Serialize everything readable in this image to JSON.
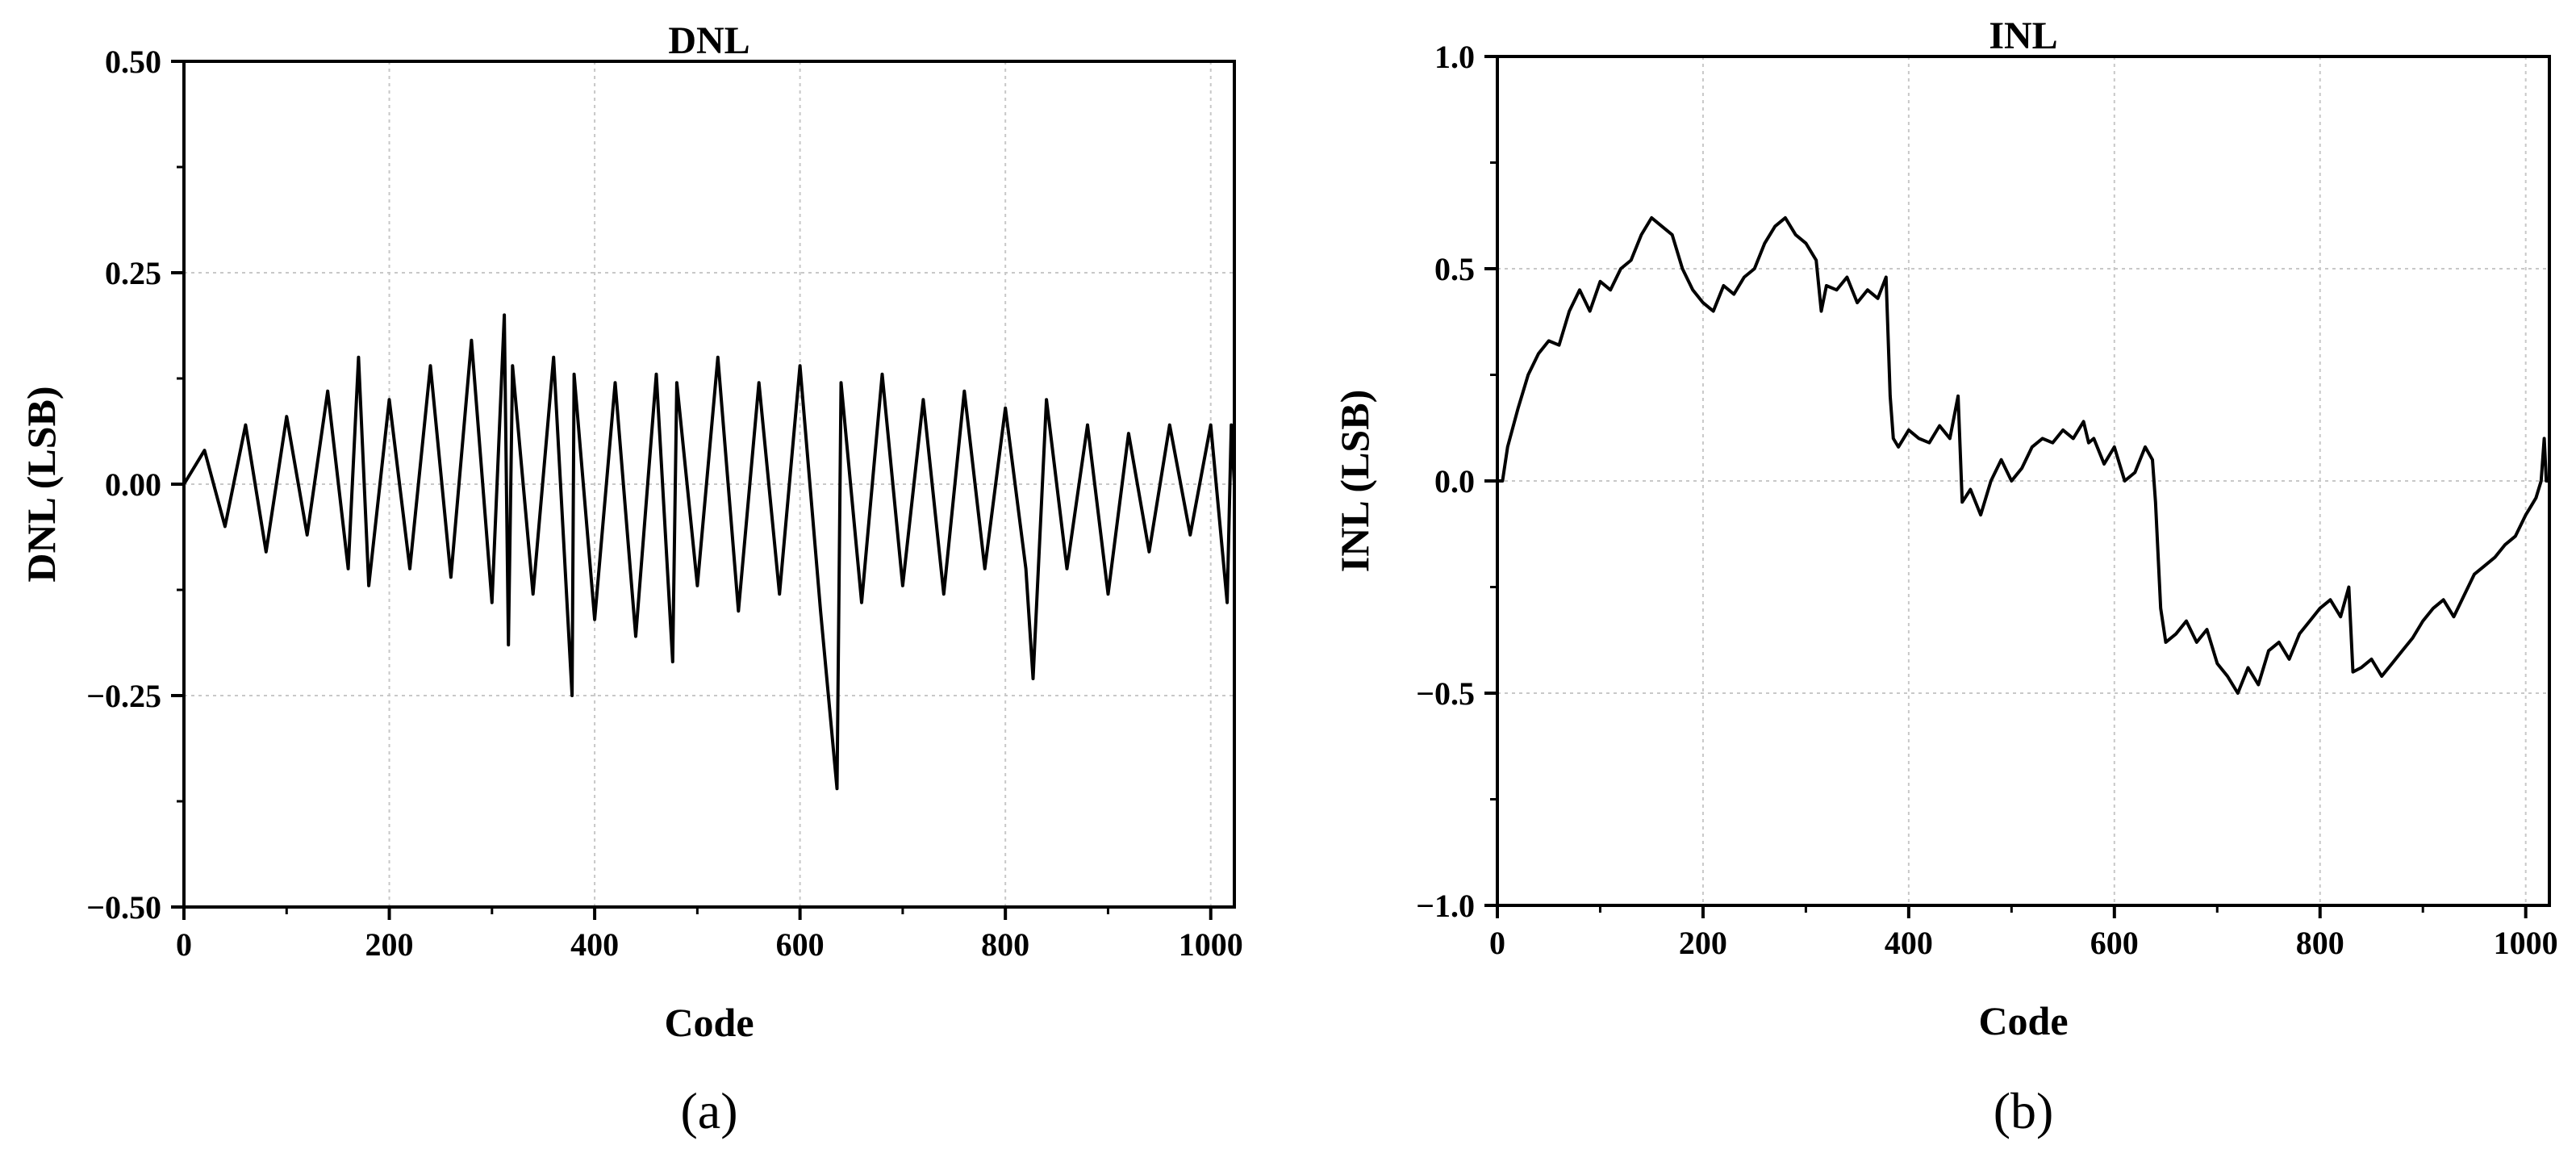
{
  "chart_data": [
    {
      "type": "line",
      "title": "DNL",
      "xlabel": "Code",
      "ylabel": "DNL (LSB)",
      "panel_label": "(a)",
      "xlim": [
        0,
        1023
      ],
      "ylim": [
        -0.5,
        0.5
      ],
      "xticks": [
        0,
        200,
        400,
        600,
        800,
        1000
      ],
      "xtick_labels": [
        "0",
        "200",
        "400",
        "600",
        "800",
        "1000"
      ],
      "yticks": [
        -0.5,
        -0.25,
        0,
        0.25,
        0.5
      ],
      "ytick_labels": [
        "−0.50",
        "−0.25",
        "0.00",
        "0.25",
        "0.50"
      ],
      "grid": true,
      "color": "#000000",
      "series": [
        {
          "x": [
            0,
            20,
            40,
            60,
            80,
            100,
            120,
            140,
            160,
            170,
            180,
            200,
            220,
            240,
            260,
            280,
            300,
            312,
            316,
            320,
            340,
            360,
            378,
            380,
            400,
            420,
            440,
            460,
            476,
            480,
            500,
            520,
            540,
            560,
            580,
            600,
            620,
            636,
            640,
            660,
            680,
            700,
            720,
            740,
            760,
            780,
            800,
            820,
            827,
            840,
            860,
            880,
            900,
            920,
            940,
            960,
            980,
            1000,
            1016,
            1020,
            1023
          ],
          "y": [
            0.0,
            0.04,
            -0.05,
            0.07,
            -0.08,
            0.08,
            -0.06,
            0.11,
            -0.1,
            0.15,
            -0.12,
            0.1,
            -0.1,
            0.14,
            -0.11,
            0.17,
            -0.14,
            0.2,
            -0.19,
            0.14,
            -0.13,
            0.15,
            -0.25,
            0.13,
            -0.16,
            0.12,
            -0.18,
            0.13,
            -0.21,
            0.12,
            -0.12,
            0.15,
            -0.15,
            0.12,
            -0.13,
            0.14,
            -0.15,
            -0.36,
            0.12,
            -0.14,
            0.13,
            -0.12,
            0.1,
            -0.13,
            0.11,
            -0.1,
            0.09,
            -0.1,
            -0.23,
            0.1,
            -0.1,
            0.07,
            -0.13,
            0.06,
            -0.08,
            0.07,
            -0.06,
            0.07,
            -0.14,
            0.07,
            0.0
          ]
        }
      ]
    },
    {
      "type": "line",
      "title": "INL",
      "xlabel": "Code",
      "ylabel": "INL (LSB)",
      "panel_label": "(b)",
      "xlim": [
        0,
        1023
      ],
      "ylim": [
        -1.0,
        1.0
      ],
      "xticks": [
        0,
        200,
        400,
        600,
        800,
        1000
      ],
      "xtick_labels": [
        "0",
        "200",
        "400",
        "600",
        "800",
        "1000"
      ],
      "yticks": [
        -1.0,
        -0.5,
        0,
        0.5,
        1.0
      ],
      "ytick_labels": [
        "−1.0",
        "−0.5",
        "0.0",
        "0.5",
        "1.0"
      ],
      "grid": true,
      "color": "#000000",
      "series": [
        {
          "x": [
            0,
            5,
            10,
            20,
            30,
            40,
            50,
            60,
            70,
            80,
            90,
            100,
            110,
            120,
            130,
            140,
            150,
            160,
            170,
            180,
            190,
            200,
            210,
            220,
            230,
            240,
            250,
            260,
            270,
            280,
            290,
            300,
            310,
            315,
            320,
            330,
            340,
            350,
            360,
            370,
            378,
            382,
            385,
            390,
            400,
            410,
            420,
            430,
            440,
            448,
            452,
            460,
            470,
            480,
            490,
            500,
            510,
            520,
            530,
            540,
            550,
            560,
            570,
            575,
            580,
            590,
            600,
            610,
            620,
            630,
            637,
            640,
            645,
            650,
            660,
            670,
            680,
            690,
            700,
            710,
            720,
            730,
            740,
            750,
            760,
            770,
            780,
            790,
            800,
            810,
            820,
            828,
            832,
            840,
            850,
            860,
            870,
            880,
            890,
            900,
            910,
            920,
            930,
            940,
            950,
            960,
            970,
            980,
            990,
            1000,
            1005,
            1010,
            1015,
            1018,
            1020,
            1023
          ],
          "y": [
            0.0,
            0.0,
            0.08,
            0.17,
            0.25,
            0.3,
            0.33,
            0.32,
            0.4,
            0.45,
            0.4,
            0.47,
            0.45,
            0.5,
            0.52,
            0.58,
            0.62,
            0.6,
            0.58,
            0.5,
            0.45,
            0.42,
            0.4,
            0.46,
            0.44,
            0.48,
            0.5,
            0.56,
            0.6,
            0.62,
            0.58,
            0.56,
            0.52,
            0.4,
            0.46,
            0.45,
            0.48,
            0.42,
            0.45,
            0.43,
            0.48,
            0.2,
            0.1,
            0.08,
            0.12,
            0.1,
            0.09,
            0.13,
            0.1,
            0.2,
            -0.05,
            -0.02,
            -0.08,
            0.0,
            0.05,
            0.0,
            0.03,
            0.08,
            0.1,
            0.09,
            0.12,
            0.1,
            0.14,
            0.09,
            0.1,
            0.04,
            0.08,
            0.0,
            0.02,
            0.08,
            0.05,
            -0.05,
            -0.3,
            -0.38,
            -0.36,
            -0.33,
            -0.38,
            -0.35,
            -0.43,
            -0.46,
            -0.5,
            -0.44,
            -0.48,
            -0.4,
            -0.38,
            -0.42,
            -0.36,
            -0.33,
            -0.3,
            -0.28,
            -0.32,
            -0.25,
            -0.45,
            -0.44,
            -0.42,
            -0.46,
            -0.43,
            -0.4,
            -0.37,
            -0.33,
            -0.3,
            -0.28,
            -0.32,
            -0.27,
            -0.22,
            -0.2,
            -0.18,
            -0.15,
            -0.13,
            -0.08,
            -0.06,
            -0.04,
            0.0,
            0.1,
            0.0,
            0.0
          ]
        }
      ]
    }
  ]
}
